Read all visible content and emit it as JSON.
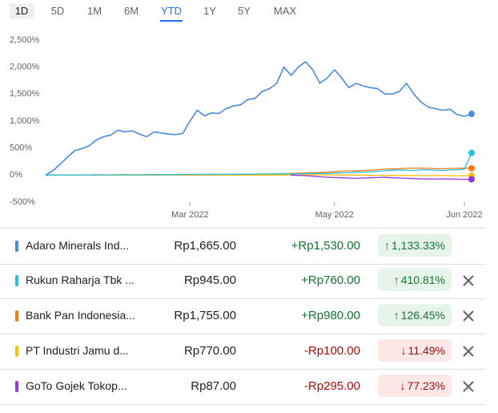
{
  "tabs": [
    "1D",
    "5D",
    "1M",
    "6M",
    "YTD",
    "1Y",
    "5Y",
    "MAX"
  ],
  "chart_data": {
    "type": "line",
    "categories": [
      null,
      null,
      null,
      null,
      null,
      null,
      null,
      null,
      null,
      null,
      null,
      null,
      null,
      null,
      null,
      null,
      null,
      null,
      null,
      null,
      "Mar 2022",
      null,
      null,
      null,
      null,
      null,
      null,
      null,
      null,
      null,
      null,
      null,
      null,
      null,
      null,
      null,
      null,
      null,
      null,
      null,
      "May 2022",
      null,
      null,
      null,
      null,
      null,
      null,
      null,
      null,
      null,
      null,
      null,
      null,
      null,
      null,
      null,
      null,
      null,
      "Jun 2022",
      null
    ],
    "ylim": [
      -500,
      2500
    ],
    "yticks": [
      {
        "value": -500,
        "label": "-500%"
      },
      {
        "value": 0,
        "label": "0%"
      },
      {
        "value": 500,
        "label": "500%"
      },
      {
        "value": 1000,
        "label": "1,000%"
      },
      {
        "value": 1500,
        "label": "1,500%"
      },
      {
        "value": 2000,
        "label": "2,000%"
      },
      {
        "value": 2500,
        "label": "2,500%"
      }
    ],
    "grid": false,
    "series": [
      {
        "name": "Adaro Minerals Ind...",
        "color": "#4a89dc",
        "values": [
          0,
          80,
          200,
          330,
          450,
          490,
          540,
          650,
          710,
          740,
          830,
          800,
          820,
          760,
          710,
          800,
          780,
          760,
          750,
          770,
          1000,
          1200,
          1100,
          1150,
          1140,
          1230,
          1280,
          1300,
          1400,
          1420,
          1550,
          1600,
          1700,
          2000,
          1850,
          2000,
          2100,
          1950,
          1700,
          1800,
          1950,
          1800,
          1620,
          1700,
          1650,
          1620,
          1600,
          1500,
          1500,
          1550,
          1700,
          1500,
          1350,
          1260,
          1230,
          1200,
          1220,
          1120,
          1090,
          1133.33
        ]
      },
      {
        "name": "Rukun Raharja Tbk ...",
        "color": "#24c1e0",
        "values": [
          0,
          2,
          3,
          1,
          4,
          5,
          3,
          6,
          5,
          4,
          6,
          8,
          7,
          5,
          6,
          8,
          10,
          9,
          8,
          10,
          12,
          14,
          12,
          15,
          13,
          14,
          16,
          15,
          18,
          20,
          22,
          20,
          25,
          24,
          22,
          26,
          28,
          30,
          32,
          30,
          35,
          40,
          45,
          50,
          55,
          60,
          70,
          80,
          90,
          95,
          90,
          85,
          95,
          100,
          90,
          85,
          95,
          100,
          110,
          410.81
        ]
      },
      {
        "name": "Bank Pan Indonesia...",
        "color": "#fa7b17",
        "values": [
          0,
          1,
          2,
          1,
          3,
          2,
          4,
          5,
          3,
          4,
          5,
          6,
          5,
          4,
          6,
          8,
          7,
          6,
          8,
          10,
          9,
          12,
          10,
          11,
          13,
          12,
          14,
          15,
          16,
          18,
          20,
          22,
          25,
          28,
          30,
          35,
          40,
          45,
          50,
          55,
          60,
          70,
          80,
          75,
          85,
          90,
          100,
          110,
          115,
          120,
          125,
          130,
          128,
          125,
          120,
          118,
          122,
          125,
          130,
          126.45
        ]
      },
      {
        "name": "PT Industri Jamu d...",
        "color": "#fbbc04",
        "values": [
          0,
          1,
          2,
          0,
          -1,
          1,
          2,
          3,
          2,
          1,
          0,
          2,
          1,
          0,
          -1,
          1,
          2,
          3,
          2,
          1,
          0,
          1,
          2,
          1,
          0,
          -1,
          0,
          1,
          2,
          1,
          0,
          -1,
          0,
          2,
          4,
          3,
          5,
          6,
          5,
          4,
          3,
          2,
          1,
          0,
          -2,
          -3,
          -4,
          -5,
          -6,
          -5,
          -7,
          -8,
          -9,
          -10,
          -8,
          -9,
          -10,
          -11,
          -12,
          -11.49
        ]
      },
      {
        "name": "GoTo Gojek Tokop...",
        "color": "#9334e6",
        "values": [
          null,
          null,
          null,
          null,
          null,
          null,
          null,
          null,
          null,
          null,
          null,
          null,
          null,
          null,
          null,
          null,
          null,
          null,
          null,
          null,
          null,
          null,
          null,
          null,
          null,
          null,
          null,
          null,
          null,
          null,
          null,
          null,
          null,
          null,
          0,
          -5,
          -10,
          -20,
          -30,
          -40,
          -45,
          -50,
          -55,
          -60,
          -55,
          -50,
          -45,
          -40,
          -50,
          -55,
          -60,
          -65,
          -70,
          -72,
          -75,
          -70,
          -72,
          -75,
          -78,
          -77.23
        ]
      }
    ]
  },
  "table": {
    "rows": [
      [
        "Rp1,665.00",
        "+Rp1,530.00",
        "1,133.33%"
      ],
      [
        "Rp945.00",
        "+Rp760.00",
        "410.81%"
      ],
      [
        "Rp1,755.00",
        "+Rp980.00",
        "126.45%"
      ],
      [
        "Rp770.00",
        "-Rp100.00",
        "11.49%"
      ],
      [
        "Rp87.00",
        "-Rp295.00",
        "77.23%"
      ]
    ]
  }
}
